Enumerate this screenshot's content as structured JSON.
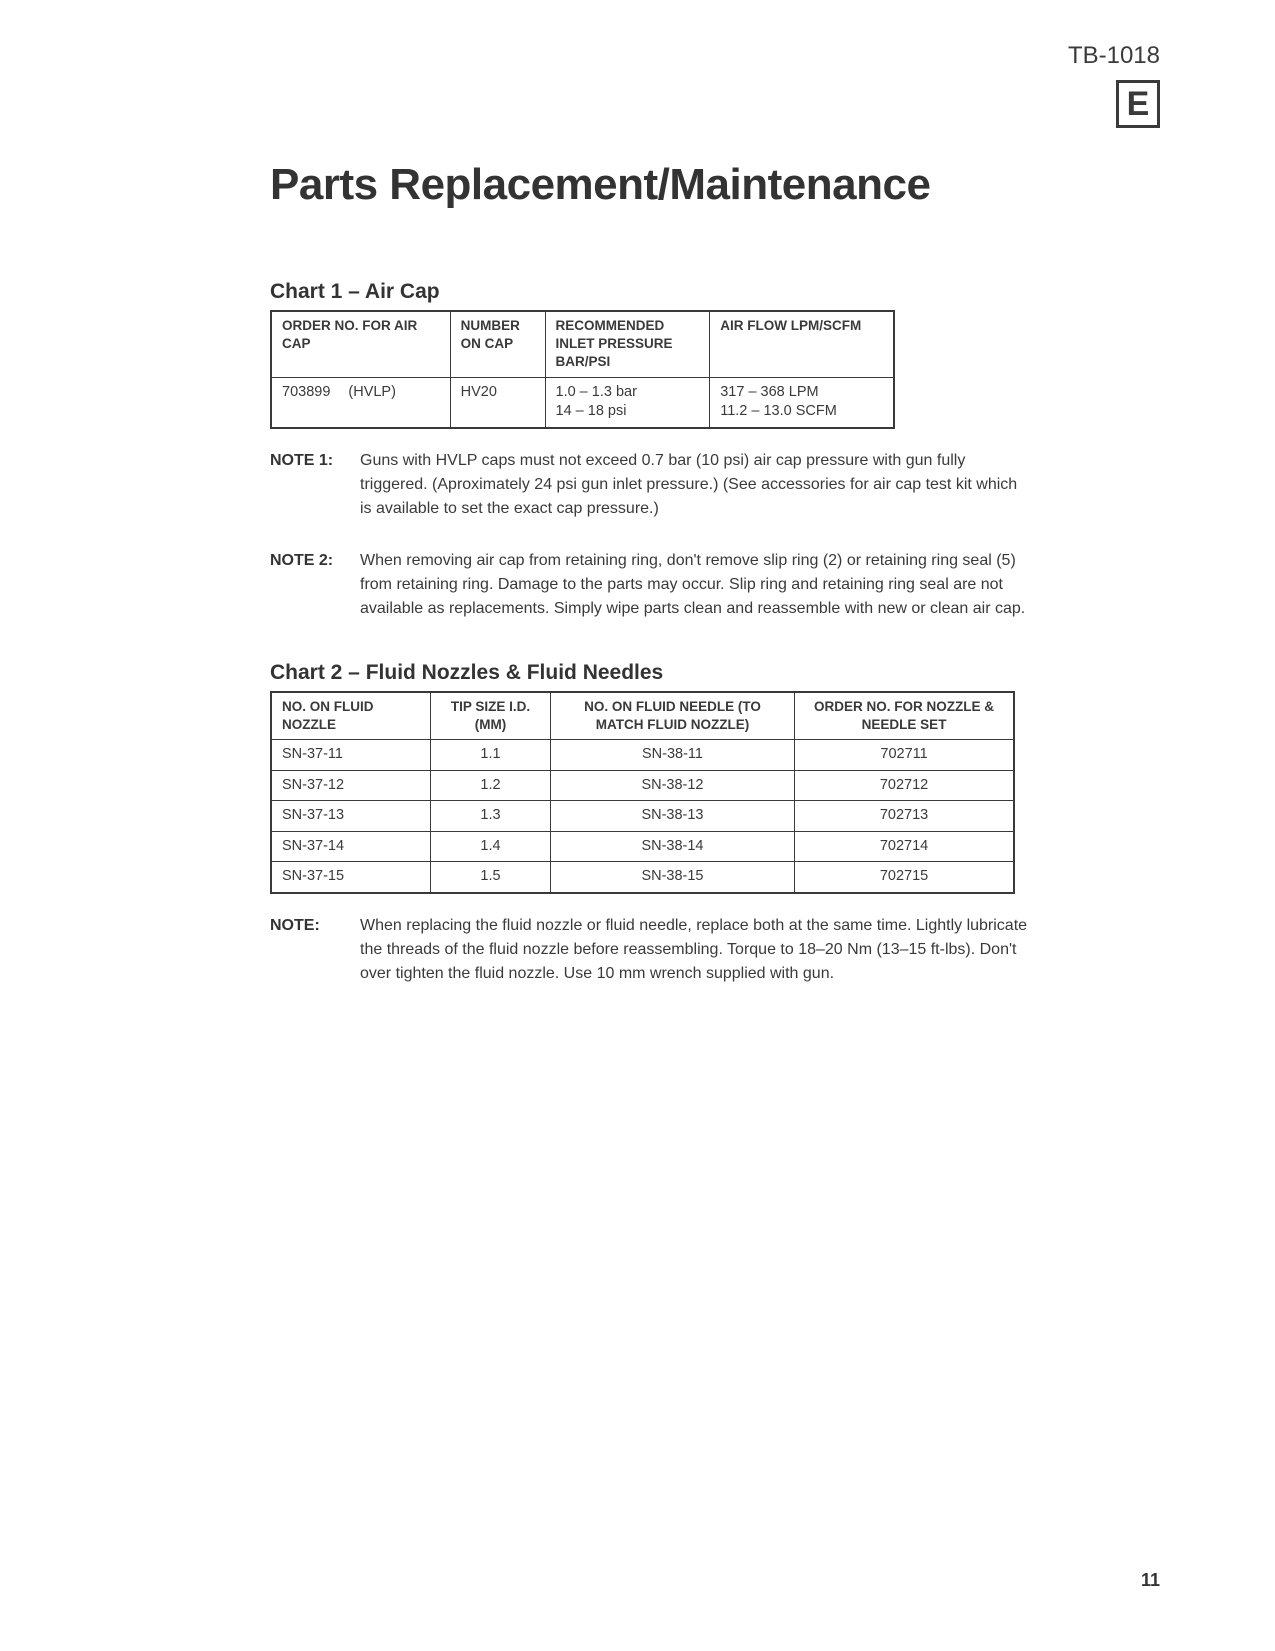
{
  "header": {
    "doc_number": "TB-1018",
    "badge": "E"
  },
  "title": "Parts Replacement/Maintenance",
  "chart1": {
    "title": "Chart 1 – Air Cap",
    "headers": {
      "c1": "ORDER NO. FOR AIR CAP",
      "c2": "NUMBER ON CAP",
      "c3": "RECOMMENDED INLET PRESSURE BAR/PSI",
      "c4": "AIR FLOW LPM/SCFM"
    },
    "row": {
      "order_no": "703899",
      "order_type": "(HVLP)",
      "number_on_cap": "HV20",
      "pressure_line1": "1.0 – 1.3 bar",
      "pressure_line2": "14 – 18 psi",
      "airflow_line1": "317 – 368 LPM",
      "airflow_line2": "11.2 – 13.0 SCFM"
    }
  },
  "note1": {
    "label": "NOTE 1:",
    "text": "Guns with HVLP caps must not exceed 0.7 bar (10 psi) air cap pressure with gun fully triggered. (Aproximately 24 psi gun inlet pressure.) (See accessories for air cap test kit which is available to set the exact cap pressure.)"
  },
  "note2": {
    "label": "NOTE 2:",
    "text": "When removing air cap from retaining ring, don't remove slip ring (2) or retaining ring seal (5) from retaining ring. Damage to the parts may occur. Slip ring and retaining ring seal are not available as replacements. Simply wipe parts clean and reassemble with new or clean air cap."
  },
  "chart2": {
    "title": "Chart 2 – Fluid Nozzles & Fluid Needles",
    "headers": {
      "c1": "NO. ON FLUID NOZZLE",
      "c2": "TIP SIZE I.D. (MM)",
      "c3": "NO. ON FLUID NEEDLE (TO MATCH FLUID NOZZLE)",
      "c4": "ORDER NO. FOR NOZZLE & NEEDLE SET"
    },
    "rows": [
      {
        "nozzle": "SN-37-11",
        "tip": "1.1",
        "needle": "SN-38-11",
        "order": "702711"
      },
      {
        "nozzle": "SN-37-12",
        "tip": "1.2",
        "needle": "SN-38-12",
        "order": "702712"
      },
      {
        "nozzle": "SN-37-13",
        "tip": "1.3",
        "needle": "SN-38-13",
        "order": "702713"
      },
      {
        "nozzle": "SN-37-14",
        "tip": "1.4",
        "needle": "SN-38-14",
        "order": "702714"
      },
      {
        "nozzle": "SN-37-15",
        "tip": "1.5",
        "needle": "SN-38-15",
        "order": "702715"
      }
    ]
  },
  "note3": {
    "label": "NOTE:",
    "text": "When replacing the fluid nozzle or fluid needle, replace both at the same time. Lightly lubricate the threads of the fluid nozzle before reassembling. Torque to 18–20 Nm (13–15 ft-lbs). Don't over tighten the fluid nozzle. Use 10 mm wrench supplied with gun."
  },
  "page_number": "11"
}
